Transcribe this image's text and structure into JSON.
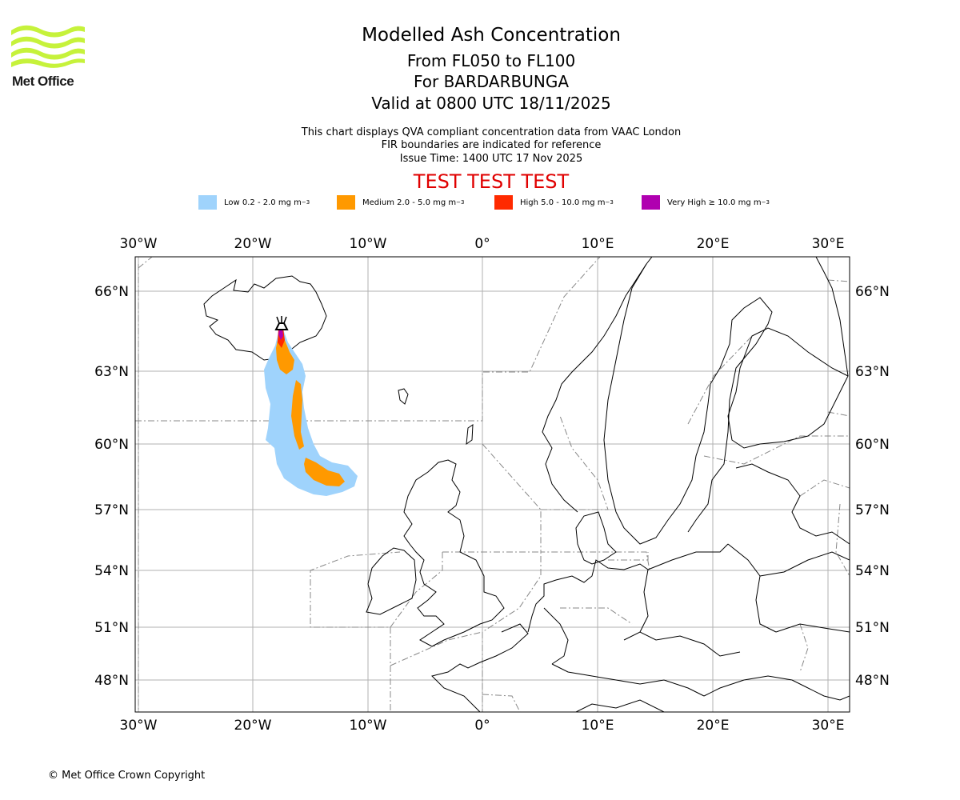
{
  "header": {
    "logo_text": "Met Office",
    "title": "Modelled Ash Concentration",
    "level_range": "From FL050 to FL100",
    "volcano": "For BARDARBUNGA",
    "valid_time": "Valid at 0800 UTC 18/11/2025",
    "info_line1": "This chart displays QVA compliant concentration data from VAAC London",
    "info_line2": "FIR boundaries are indicated for reference",
    "issue_time": "Issue Time: 1400 UTC 17 Nov 2025",
    "test_banner": "TEST TEST TEST"
  },
  "legend": [
    {
      "label": "Low 0.2 - 2.0 mg m",
      "sup": "−3",
      "color": "#9fd3fc"
    },
    {
      "label": "Medium 2.0 - 5.0 mg m",
      "sup": "−3",
      "color": "#ff9900"
    },
    {
      "label": "High 5.0 - 10.0 mg m",
      "sup": "−3",
      "color": "#ff2a00"
    },
    {
      "label": "Very High ≥ 10.0 mg m",
      "sup": "−3",
      "color": "#b000b0"
    }
  ],
  "axes": {
    "lon_labels": [
      "30°W",
      "20°W",
      "10°W",
      "0°",
      "10°E",
      "20°E",
      "30°E"
    ],
    "lat_labels": [
      "66°N",
      "63°N",
      "60°N",
      "57°N",
      "54°N",
      "51°N",
      "48°N"
    ]
  },
  "volcano_icon": "volcano-icon",
  "footer": {
    "copyright": "© Met Office Crown Copyright"
  },
  "colors": {
    "banner": "#e00000",
    "logo": "#c6f23b",
    "grid": "#b0b0b0",
    "fir": "#888888"
  }
}
